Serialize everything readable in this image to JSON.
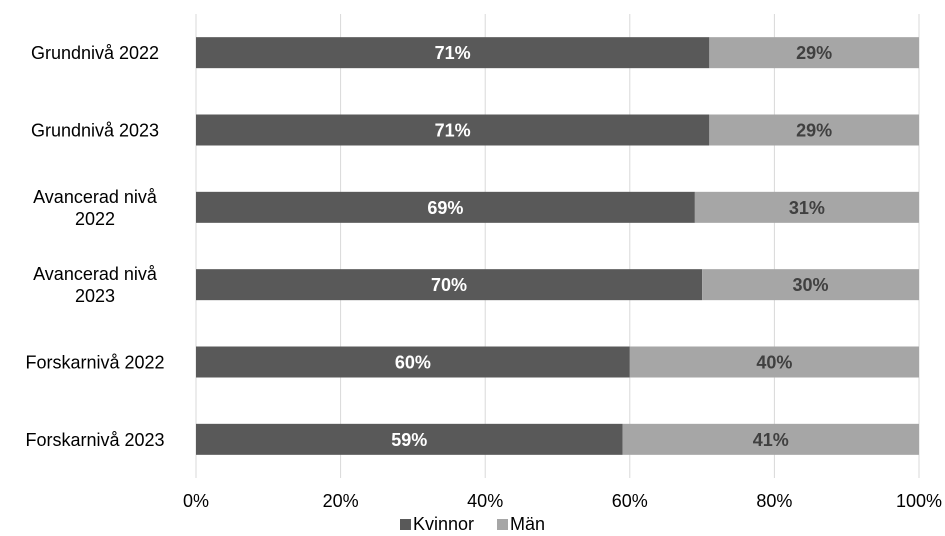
{
  "chart_data": {
    "type": "bar",
    "orientation": "horizontal",
    "stacked": "percent",
    "categories": [
      [
        "Grundnivå 2022"
      ],
      [
        "Grundnivå 2023"
      ],
      [
        "Avancerad nivå",
        "2022"
      ],
      [
        "Avancerad nivå",
        "2023"
      ],
      [
        "Forskarnivå 2022"
      ],
      [
        "Forskarnivå 2023"
      ]
    ],
    "series": [
      {
        "name": "Kvinnor",
        "color": "#595959",
        "label_color": "#ffffff",
        "values": [
          71,
          71,
          69,
          70,
          60,
          59
        ],
        "labels": [
          "71%",
          "71%",
          "69%",
          "70%",
          "60%",
          "59%"
        ]
      },
      {
        "name": "Män",
        "color": "#a6a6a6",
        "label_color": "#404040",
        "values": [
          29,
          29,
          31,
          30,
          40,
          41
        ],
        "labels": [
          "29%",
          "29%",
          "31%",
          "30%",
          "40%",
          "41%"
        ]
      }
    ],
    "xlim": [
      0,
      100
    ],
    "xticks": [
      0,
      20,
      40,
      60,
      80,
      100
    ],
    "xtick_labels": [
      "0%",
      "20%",
      "40%",
      "60%",
      "80%",
      "100%"
    ],
    "grid": "vertical",
    "grid_color": "#d9d9d9",
    "legend_position": "bottom"
  }
}
